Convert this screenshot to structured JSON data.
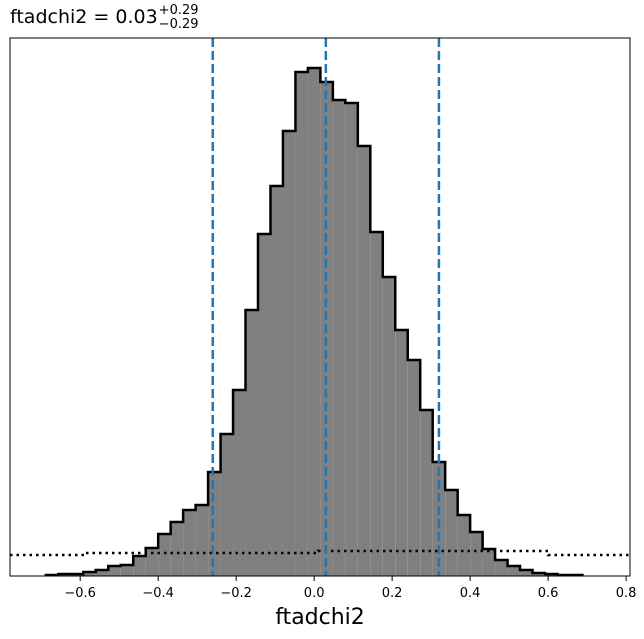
{
  "chart_data": {
    "type": "histogram",
    "title": "ftadchi2 = 0.03",
    "title_upper": "+0.29",
    "title_lower": "−0.29",
    "x_label": "ftadchi2",
    "bins": [
      -0.688,
      -0.656,
      -0.624,
      -0.592,
      -0.56,
      -0.528,
      -0.496,
      -0.464,
      -0.432,
      -0.4,
      -0.368,
      -0.336,
      -0.304,
      -0.272,
      -0.24,
      -0.208,
      -0.176,
      -0.144,
      -0.112,
      -0.08,
      -0.048,
      -0.016,
      0.016,
      0.048,
      0.08,
      0.112,
      0.144,
      0.176,
      0.208,
      0.24,
      0.272,
      0.304,
      0.336,
      0.368,
      0.4,
      0.432,
      0.464,
      0.496,
      0.528,
      0.56,
      0.592,
      0.624,
      0.656,
      0.688
    ],
    "values": [
      1,
      2,
      2,
      4,
      6,
      10,
      11,
      20,
      28,
      42,
      54,
      66,
      71,
      104,
      142,
      186,
      266,
      342,
      390,
      445,
      504,
      508,
      494,
      476,
      473,
      430,
      344,
      299,
      246,
      216,
      166,
      114,
      86,
      61,
      44,
      27,
      16,
      10,
      6,
      3,
      2,
      1,
      1
    ],
    "color": "#808080",
    "edge_color": "#000000",
    "prior": {
      "bins": [
        -0.78,
        -0.59,
        0.01,
        0.6,
        0.81
      ],
      "values": [
        21,
        23,
        25,
        21
      ]
    },
    "vlines": [
      -0.26,
      0.03,
      0.32
    ],
    "vline_color": "#1f77b4",
    "xlim": [
      -0.78,
      0.81
    ],
    "ylim": [
      0,
      538
    ],
    "xticks": [
      {
        "value": -0.6,
        "label": "−0.6"
      },
      {
        "value": -0.4,
        "label": "−0.4"
      },
      {
        "value": -0.2,
        "label": "−0.2"
      },
      {
        "value": 0,
        "label": "0.0"
      },
      0.2,
      0.4,
      0.6,
      0.8
    ]
  }
}
